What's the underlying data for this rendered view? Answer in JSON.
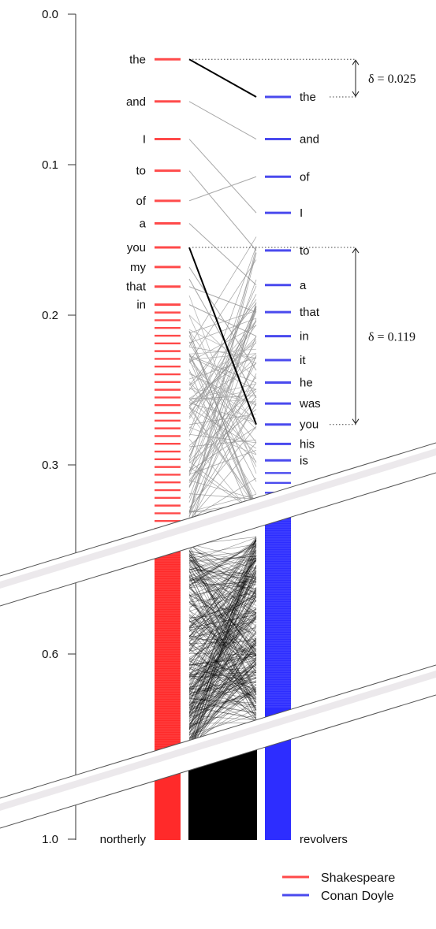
{
  "chart_data": {
    "type": "line",
    "title": "",
    "xlabel": "",
    "ylabel": "",
    "ylim": [
      0.0,
      1.0
    ],
    "y_ticks": [
      "0.0",
      "0.1",
      "0.2",
      "0.3",
      "0.6",
      "1.0"
    ],
    "axis_break": "between 0.3 and 0.6, and between 0.6 and 1.0",
    "legend_position": "bottom-right",
    "series": [
      {
        "name": "Shakespeare",
        "color": "#ff4a4a",
        "labeled_words": [
          {
            "word": "the",
            "y": 0.03
          },
          {
            "word": "and",
            "y": 0.058
          },
          {
            "word": "I",
            "y": 0.083
          },
          {
            "word": "to",
            "y": 0.104
          },
          {
            "word": "of",
            "y": 0.124
          },
          {
            "word": "a",
            "y": 0.139
          },
          {
            "word": "you",
            "y": 0.155
          },
          {
            "word": "my",
            "y": 0.168
          },
          {
            "word": "that",
            "y": 0.181
          },
          {
            "word": "in",
            "y": 0.193
          }
        ],
        "end_word": {
          "word": "northerly",
          "y": 1.0
        }
      },
      {
        "name": "Conan Doyle",
        "color": "#4a4aee",
        "labeled_words": [
          {
            "word": "the",
            "y": 0.055
          },
          {
            "word": "and",
            "y": 0.083
          },
          {
            "word": "of",
            "y": 0.108
          },
          {
            "word": "I",
            "y": 0.132
          },
          {
            "word": "to",
            "y": 0.157
          },
          {
            "word": "a",
            "y": 0.18
          },
          {
            "word": "that",
            "y": 0.198
          },
          {
            "word": "in",
            "y": 0.214
          },
          {
            "word": "it",
            "y": 0.23
          },
          {
            "word": "he",
            "y": 0.245
          },
          {
            "word": "was",
            "y": 0.259
          },
          {
            "word": "you",
            "y": 0.273
          },
          {
            "word": "his",
            "y": 0.286
          },
          {
            "word": "is",
            "y": 0.297
          }
        ],
        "end_word": {
          "word": "revolvers",
          "y": 1.0
        }
      }
    ],
    "annotations": [
      {
        "text": "δ = 0.025",
        "word": "the",
        "from_y": 0.03,
        "to_y": 0.055
      },
      {
        "text": "δ = 0.119",
        "word": "you",
        "from_y": 0.155,
        "to_y": 0.273
      }
    ],
    "legend": [
      "Shakespeare",
      "Conan Doyle"
    ]
  }
}
